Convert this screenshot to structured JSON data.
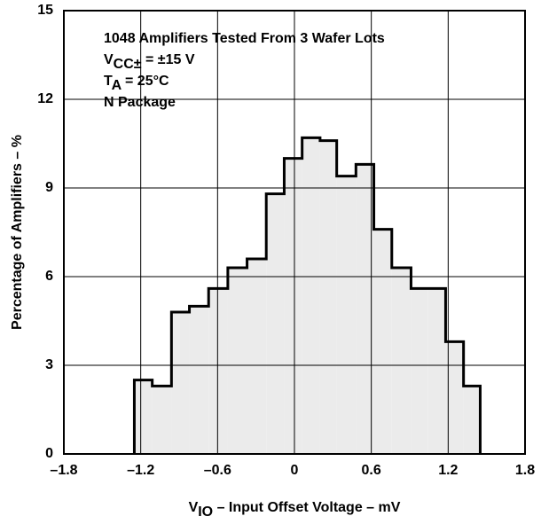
{
  "chart_data": {
    "type": "histogram",
    "annotations": [
      {
        "main": "1048 Amplifiers Tested From 3 Wafer Lots"
      },
      {
        "main": "V",
        "sub": "CC±",
        "tail": " = ±15  V"
      },
      {
        "main": "T",
        "sub": "A",
        "tail": " = 25°C"
      },
      {
        "main": "N Package"
      }
    ],
    "xlabel": {
      "main": "V",
      "sub": "IO",
      "tail": " – Input Offset Voltage – mV"
    },
    "ylabel": "Percentage of Amplifiers – %",
    "bins": [
      -1.25,
      -1.11,
      -0.96,
      -0.82,
      -0.67,
      -0.52,
      -0.37,
      -0.22,
      -0.08,
      0.06,
      0.2,
      0.33,
      0.48,
      0.62,
      0.76,
      0.91,
      1.04,
      1.18,
      1.32,
      1.45
    ],
    "values": [
      2.5,
      2.3,
      4.8,
      5.0,
      5.6,
      6.3,
      6.6,
      8.8,
      10.0,
      10.7,
      10.6,
      9.4,
      9.8,
      7.6,
      6.3,
      5.6,
      5.6,
      3.8,
      2.3
    ],
    "color": "#ebebeb",
    "xlim": [
      -1.8,
      1.8
    ],
    "xticks": [
      {
        "value": -1.8,
        "label": "–1.8"
      },
      {
        "value": -1.2,
        "label": "–1.2"
      },
      {
        "value": -0.6,
        "label": "–0.6"
      },
      0,
      0.6,
      1.2,
      1.8
    ],
    "ylim": [
      0,
      15
    ],
    "yticks": [
      0,
      3,
      6,
      9,
      12,
      15
    ],
    "grid": true
  }
}
